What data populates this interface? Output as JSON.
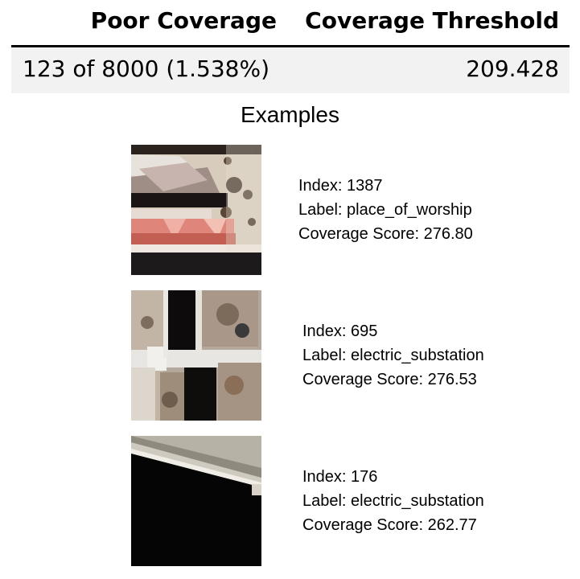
{
  "table": {
    "headers": {
      "poor_coverage": "Poor Coverage",
      "coverage_threshold": "Coverage Threshold"
    },
    "row": {
      "poor_coverage": "123 of 8000 (1.538%)",
      "coverage_threshold": "209.428"
    }
  },
  "examples": {
    "title": "Examples",
    "items": [
      {
        "index_text": "Index: 1387",
        "label_text": "Label: place_of_worship",
        "score_text": "Coverage Score: 276.80"
      },
      {
        "index_text": "Index: 695",
        "label_text": "Label: electric_substation",
        "score_text": "Coverage Score: 276.53"
      },
      {
        "index_text": "Index: 176",
        "label_text": "Label: electric_substation",
        "score_text": "Coverage Score: 262.77"
      }
    ]
  }
}
